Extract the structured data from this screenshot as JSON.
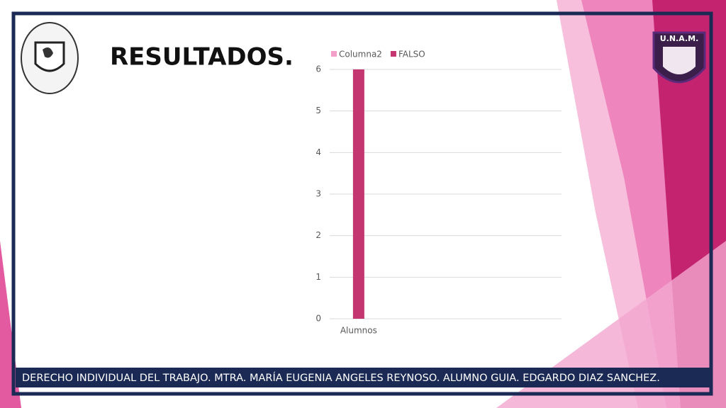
{
  "header": {
    "title": "RESULTADOS."
  },
  "footer": {
    "text": "DERECHO INDIVIDUAL DEL TRABAJO. MTRA. MARÍA EUGENIA ANGELES REYNOSO. ALUMNO GUIA. EDGARDO DIAZ SANCHEZ."
  },
  "logo_right": {
    "text": "U.N.A.M."
  },
  "chart_data": {
    "type": "bar",
    "categories": [
      "Alumnos",
      null,
      null,
      null
    ],
    "series": [
      {
        "name": "Columna2",
        "color": "#f29fc9",
        "values": [
          null,
          null,
          null,
          null
        ]
      },
      {
        "name": "FALSO",
        "color": "#c3366f",
        "values": [
          6,
          null,
          null,
          null
        ]
      }
    ],
    "ylim": [
      0,
      6
    ],
    "yticks": [
      0,
      1,
      2,
      3,
      4,
      5,
      6
    ],
    "grid": true,
    "legend": "top"
  }
}
